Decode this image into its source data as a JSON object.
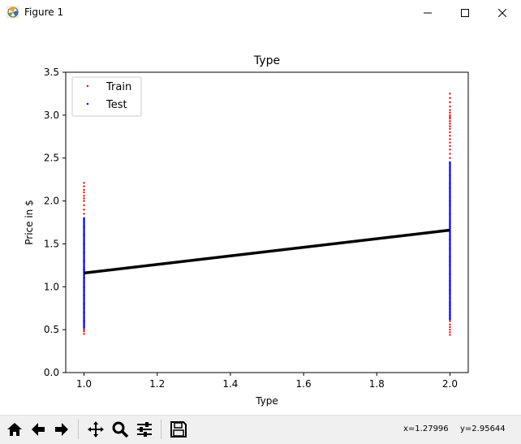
{
  "window": {
    "title": "Figure 1"
  },
  "chart_data": {
    "type": "scatter",
    "title": "Type",
    "xlabel": "Type",
    "ylabel": "Price in $",
    "xlim": [
      0.95,
      2.05
    ],
    "ylim": [
      0.0,
      3.5
    ],
    "xticks": [
      "1.0",
      "1.2",
      "1.4",
      "1.6",
      "1.8",
      "2.0"
    ],
    "yticks": [
      "0.0",
      "0.5",
      "1.0",
      "1.5",
      "2.0",
      "2.5",
      "3.0",
      "3.5"
    ],
    "legend_position": "upper-left",
    "series": [
      {
        "name": "Train",
        "color": "#ff0000",
        "marker": "dot",
        "x": [
          1.0,
          1.0,
          1.0,
          1.0,
          1.0,
          1.0,
          1.0,
          1.0,
          1.0,
          1.0,
          1.0,
          1.0,
          1.0,
          1.0,
          1.0,
          1.0,
          1.0,
          1.0,
          1.0,
          1.0,
          1.0,
          1.0,
          1.0,
          1.0,
          1.0,
          1.0,
          1.0,
          1.0,
          1.0,
          1.0,
          2.0,
          2.0,
          2.0,
          2.0,
          2.0,
          2.0,
          2.0,
          2.0,
          2.0,
          2.0,
          2.0,
          2.0,
          2.0,
          2.0,
          2.0,
          2.0,
          2.0,
          2.0,
          2.0,
          2.0,
          2.0,
          2.0,
          2.0,
          2.0,
          2.0,
          2.0,
          2.0,
          2.0,
          2.0,
          2.0,
          2.0,
          2.0,
          2.0,
          2.0,
          2.0,
          2.0,
          2.0,
          2.0,
          2.0,
          2.0,
          2.0,
          2.0,
          2.0,
          2.0
        ],
        "y": [
          0.45,
          0.48,
          0.5,
          0.53,
          0.56,
          0.6,
          0.65,
          0.7,
          0.75,
          0.8,
          0.9,
          1.0,
          1.1,
          1.2,
          1.3,
          1.4,
          1.5,
          1.6,
          1.7,
          1.78,
          1.85,
          1.9,
          1.95,
          2.0,
          2.03,
          2.06,
          2.1,
          2.13,
          2.17,
          2.21,
          0.44,
          0.47,
          0.5,
          0.53,
          0.56,
          0.6,
          0.63,
          0.67,
          0.7,
          0.74,
          0.78,
          0.82,
          0.87,
          0.92,
          0.97,
          1.02,
          1.07,
          2.45,
          2.5,
          2.55,
          2.6,
          2.64,
          2.68,
          2.72,
          2.76,
          2.8,
          2.84,
          2.87,
          2.9,
          2.93,
          2.96,
          2.98,
          3.0,
          3.03,
          3.06,
          3.1,
          3.15,
          3.2,
          3.25,
          1.3,
          1.5,
          1.7,
          2.0,
          2.2
        ]
      },
      {
        "name": "Test",
        "color": "#0000ff",
        "marker": "dot",
        "x": [
          1.0,
          1.0,
          1.0,
          1.0,
          1.0,
          1.0,
          1.0,
          1.0,
          1.0,
          1.0,
          1.0,
          1.0,
          1.0,
          1.0,
          1.0,
          1.0,
          2.0,
          2.0,
          2.0,
          2.0,
          2.0,
          2.0,
          2.0,
          2.0,
          2.0,
          2.0,
          2.0,
          2.0,
          2.0,
          2.0,
          2.0,
          2.0,
          2.0
        ],
        "y": [
          0.52,
          0.6,
          0.7,
          0.8,
          0.9,
          1.0,
          1.05,
          1.1,
          1.15,
          1.2,
          1.3,
          1.4,
          1.5,
          1.6,
          1.7,
          1.8,
          0.62,
          0.8,
          0.95,
          1.05,
          1.15,
          1.25,
          1.35,
          1.45,
          1.55,
          1.65,
          1.75,
          1.85,
          1.95,
          2.05,
          2.15,
          2.3,
          2.45
        ]
      }
    ],
    "fit_line": {
      "color": "#000000",
      "x": [
        1.0,
        2.0
      ],
      "y": [
        1.16,
        1.66
      ]
    }
  },
  "toolbar": {
    "icons": [
      "home-icon",
      "back-arrow-icon",
      "forward-arrow-icon",
      "pan-icon",
      "zoom-icon",
      "configure-subplots-icon",
      "save-icon"
    ],
    "coords": {
      "x": "x=1.27996",
      "y": "y=2.95644"
    }
  }
}
